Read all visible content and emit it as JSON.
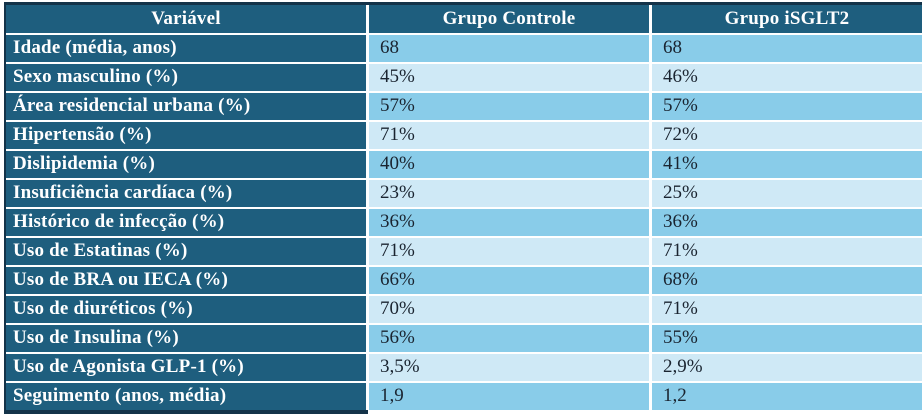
{
  "colors": {
    "border": "#143349",
    "header_bg": "#1e5e7e",
    "header_text": "#ffffff",
    "row_medium_blue": "#89cce9",
    "row_light_blue": "#cfe9f6",
    "data_text": "#1a2430"
  },
  "chart_data": {
    "type": "table",
    "columns": [
      "Variável",
      "Grupo Controle",
      "Grupo iSGLT2"
    ],
    "rows": [
      {
        "variavel": "Idade (média, anos)",
        "grupo_controle": "68",
        "grupo_isglt2": "68"
      },
      {
        "variavel": "Sexo masculino (%)",
        "grupo_controle": "45%",
        "grupo_isglt2": "46%"
      },
      {
        "variavel": "Área residencial urbana (%)",
        "grupo_controle": "57%",
        "grupo_isglt2": "57%"
      },
      {
        "variavel": "Hipertensão (%)",
        "grupo_controle": "71%",
        "grupo_isglt2": "72%"
      },
      {
        "variavel": "Dislipidemia (%)",
        "grupo_controle": "40%",
        "grupo_isglt2": "41%"
      },
      {
        "variavel": "Insuficiência cardíaca (%)",
        "grupo_controle": "23%",
        "grupo_isglt2": "25%"
      },
      {
        "variavel": "Histórico de infecção (%)",
        "grupo_controle": "36%",
        "grupo_isglt2": "36%"
      },
      {
        "variavel": "Uso de Estatinas (%)",
        "grupo_controle": "71%",
        "grupo_isglt2": "71%"
      },
      {
        "variavel": "Uso de BRA ou IECA (%)",
        "grupo_controle": "66%",
        "grupo_isglt2": "68%"
      },
      {
        "variavel": "Uso de diuréticos (%)",
        "grupo_controle": "70%",
        "grupo_isglt2": "71%"
      },
      {
        "variavel": "Uso de Insulina (%)",
        "grupo_controle": "56%",
        "grupo_isglt2": "55%"
      },
      {
        "variavel": "Uso de Agonista GLP-1 (%)",
        "grupo_controle": "3,5%",
        "grupo_isglt2": "2,9%"
      },
      {
        "variavel": "Seguimento (anos, média)",
        "grupo_controle": "1,9",
        "grupo_isglt2": "1,2"
      }
    ]
  }
}
